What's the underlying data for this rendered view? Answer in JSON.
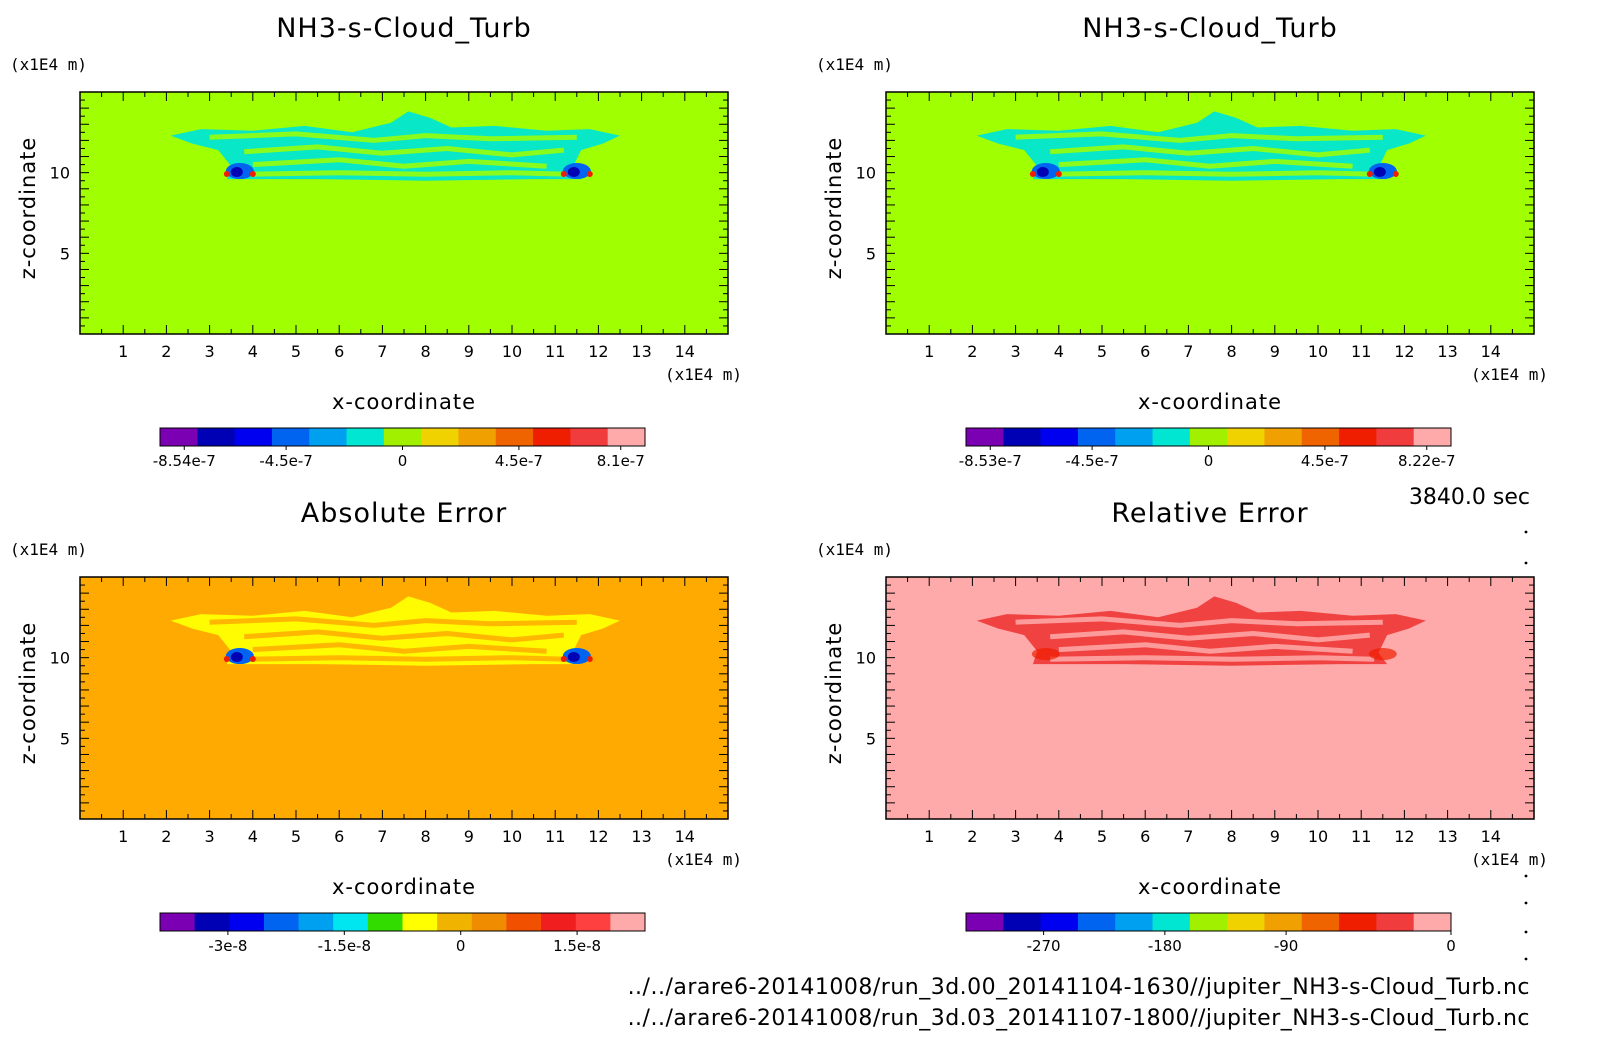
{
  "time_label": "3840.0 sec",
  "footer": {
    "file_a": "../../arare6-20141008/run_3d.00_20141104-1630//jupiter_NH3-s-Cloud_Turb.nc",
    "file_b": "../../arare6-20141008/run_3d.03_20141107-1800//jupiter_NH3-s-Cloud_Turb.nc"
  },
  "colormap": [
    "#7b00b4",
    "#0000b4",
    "#0000f0",
    "#0064f0",
    "#00a0f0",
    "#00e6d2",
    "#a0f000",
    "#f0d200",
    "#f0a000",
    "#f06400",
    "#f01e00",
    "#f03c3c",
    "#ffaaaa"
  ],
  "chart_data": [
    {
      "type": "heatmap",
      "title": "NH3-s-Cloud_Turb",
      "xlabel": "x-coordinate",
      "ylabel": "z-coordinate",
      "x_unit": "(x1E4 m)",
      "y_unit": "(x1E4 m)",
      "xlim": [
        0,
        15
      ],
      "ylim": [
        0,
        15
      ],
      "xticks": [
        1,
        2,
        3,
        4,
        5,
        6,
        7,
        8,
        9,
        10,
        11,
        12,
        13,
        14
      ],
      "yticks": [
        5,
        10
      ],
      "background": "#a0ff00",
      "cloud_color": "#00e6d2",
      "colorbar_colors": [
        "#7b00b4",
        "#0000b4",
        "#0000f0",
        "#0064f0",
        "#00a0f0",
        "#00e6d2",
        "#a0f000",
        "#f0d200",
        "#f0a000",
        "#f06400",
        "#f01e00",
        "#f03c3c",
        "#ffaaaa"
      ],
      "colorbar_labels": [
        "-8.54e-7",
        "-4.5e-7",
        "0",
        "4.5e-7",
        "8.1e-7"
      ]
    },
    {
      "type": "heatmap",
      "title": "NH3-s-Cloud_Turb",
      "xlabel": "x-coordinate",
      "ylabel": "z-coordinate",
      "x_unit": "(x1E4 m)",
      "y_unit": "(x1E4 m)",
      "xlim": [
        0,
        15
      ],
      "ylim": [
        0,
        15
      ],
      "xticks": [
        1,
        2,
        3,
        4,
        5,
        6,
        7,
        8,
        9,
        10,
        11,
        12,
        13,
        14
      ],
      "yticks": [
        5,
        10
      ],
      "background": "#a0ff00",
      "cloud_color": "#00e6d2",
      "colorbar_colors": [
        "#7b00b4",
        "#0000b4",
        "#0000f0",
        "#0064f0",
        "#00a0f0",
        "#00e6d2",
        "#a0f000",
        "#f0d200",
        "#f0a000",
        "#f06400",
        "#f01e00",
        "#f03c3c",
        "#ffaaaa"
      ],
      "colorbar_labels": [
        "-8.53e-7",
        "-4.5e-7",
        "0",
        "4.5e-7",
        "8.22e-7"
      ]
    },
    {
      "type": "heatmap",
      "title": "Absolute Error",
      "xlabel": "x-coordinate",
      "ylabel": "z-coordinate",
      "x_unit": "(x1E4 m)",
      "y_unit": "(x1E4 m)",
      "xlim": [
        0,
        15
      ],
      "ylim": [
        0,
        15
      ],
      "xticks": [
        1,
        2,
        3,
        4,
        5,
        6,
        7,
        8,
        9,
        10,
        11,
        12,
        13,
        14
      ],
      "yticks": [
        5,
        10
      ],
      "background": "#ffaa00",
      "cloud_color": "#ffff00",
      "colorbar_colors": [
        "#7b00b4",
        "#0000b4",
        "#0000f0",
        "#0064f0",
        "#00a0f0",
        "#00e6f0",
        "#32dc00",
        "#ffff00",
        "#f0b400",
        "#f08c00",
        "#f05000",
        "#f01e1e",
        "#ff4040",
        "#ffaaaa"
      ],
      "colorbar_labels": [
        "-3e-8",
        "-1.5e-8",
        "0",
        "1.5e-8"
      ]
    },
    {
      "type": "heatmap",
      "title": "Relative Error",
      "xlabel": "x-coordinate",
      "ylabel": "z-coordinate",
      "x_unit": "(x1E4 m)",
      "y_unit": "(x1E4 m)",
      "xlim": [
        0,
        15
      ],
      "ylim": [
        0,
        15
      ],
      "xticks": [
        1,
        2,
        3,
        4,
        5,
        6,
        7,
        8,
        9,
        10,
        11,
        12,
        13,
        14
      ],
      "yticks": [
        5,
        10
      ],
      "background": "#ffaaaa",
      "cloud_color": "#f03c3c",
      "colorbar_colors": [
        "#7b00b4",
        "#0000b4",
        "#0000f0",
        "#0064f0",
        "#00a0f0",
        "#00e6d2",
        "#a0f000",
        "#f0d200",
        "#f0a000",
        "#f06400",
        "#f01e00",
        "#f03c3c",
        "#ffaaaa"
      ],
      "colorbar_labels": [
        "-270",
        "-180",
        "-90",
        "0"
      ]
    }
  ]
}
